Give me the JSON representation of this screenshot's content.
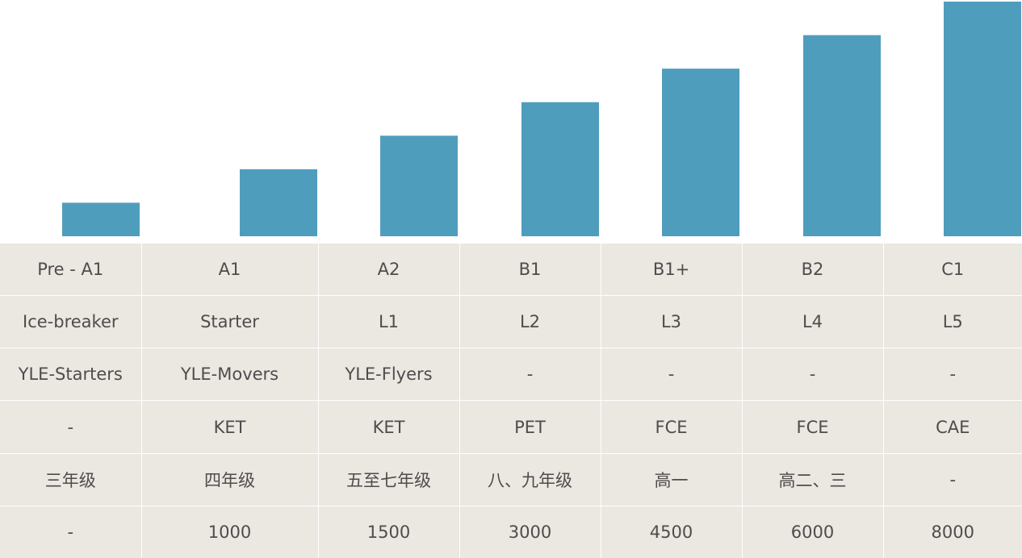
{
  "chart_data": {
    "type": "bar",
    "categories": [
      "Pre - A1",
      "A1",
      "A2",
      "B1",
      "B1+",
      "B2",
      "C1"
    ],
    "values": [
      1,
      2,
      3,
      4,
      5,
      6,
      7
    ],
    "ylim": [
      0,
      7
    ],
    "grid": false,
    "bar_color": "#4f9dbd",
    "table": {
      "rows": [
        [
          "Pre - A1",
          "A1",
          "A2",
          "B1",
          "B1+",
          "B2",
          "C1"
        ],
        [
          "Ice-breaker",
          "Starter",
          "L1",
          "L2",
          "L3",
          "L4",
          "L5"
        ],
        [
          "YLE-Starters",
          "YLE-Movers",
          "YLE-Flyers",
          "-",
          "-",
          "-",
          "-"
        ],
        [
          "-",
          "KET",
          "KET",
          "PET",
          "FCE",
          "FCE",
          "CAE"
        ],
        [
          "三年级",
          "四年级",
          "五至七年级",
          "八、九年级",
          "高一",
          "高二、三",
          "-"
        ],
        [
          "-",
          "1000",
          "1500",
          "3000",
          "4500",
          "6000",
          "8000"
        ]
      ]
    }
  },
  "colors": {
    "table_bg": "#ebe7e1",
    "table_text": "#4d4d4d",
    "cell_border": "#ffffff"
  }
}
